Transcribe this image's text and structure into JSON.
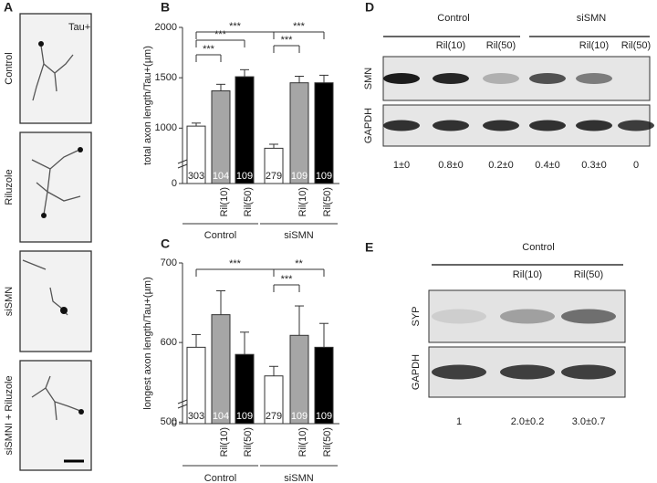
{
  "panel_labels": [
    "A",
    "B",
    "C",
    "D",
    "E"
  ],
  "panel_a": {
    "marker": "Tau+",
    "conditions": [
      "Control",
      "Riluzole",
      "siSMN",
      "siSMNI + Riluzole"
    ]
  },
  "chart_data": [
    {
      "type": "bar",
      "ylabel": "total axon length/Tau+(µm)",
      "groups": [
        "Control",
        "siSMN"
      ],
      "categories": [
        null,
        "Ril(10)",
        "Ril(50)",
        null,
        "Ril(10)",
        "Ril(50)"
      ],
      "values": [
        1020,
        1370,
        1510,
        800,
        1450,
        1450
      ],
      "errors": [
        30,
        65,
        70,
        40,
        65,
        75
      ],
      "n": [
        303,
        104,
        109,
        279,
        109,
        109
      ],
      "colors": [
        "#ffffff",
        "#a6a6a6",
        "#000000",
        "#ffffff",
        "#a6a6a6",
        "#000000"
      ],
      "ylim": [
        0,
        2000
      ],
      "yticks": [
        0,
        1000,
        1500,
        2000
      ],
      "significance": [
        {
          "text": "***",
          "pair": [
            0,
            3
          ]
        },
        {
          "text": "***",
          "pair": [
            3,
            5
          ]
        },
        {
          "text": "***",
          "pair": [
            0,
            2
          ]
        },
        {
          "text": "***",
          "pair": [
            3,
            4
          ]
        },
        {
          "text": "***",
          "pair": [
            0,
            1
          ]
        }
      ]
    },
    {
      "type": "bar",
      "ylabel": "longest axon length/Tau+(µm)",
      "groups": [
        "Control",
        "siSMN"
      ],
      "categories": [
        null,
        "Ril(10)",
        "Ril(50)",
        null,
        "Ril(10)",
        "Ril(50)"
      ],
      "values": [
        594,
        635,
        585,
        558,
        609,
        594
      ],
      "errors": [
        16,
        30,
        28,
        12,
        37,
        30
      ],
      "n": [
        303,
        104,
        109,
        279,
        109,
        109
      ],
      "colors": [
        "#ffffff",
        "#a6a6a6",
        "#000000",
        "#ffffff",
        "#a6a6a6",
        "#000000"
      ],
      "ylim": [
        0,
        700
      ],
      "yticks": [
        0,
        500,
        600,
        700
      ],
      "significance": [
        {
          "text": "***",
          "pair": [
            0,
            3
          ]
        },
        {
          "text": "**",
          "pair": [
            3,
            5
          ]
        },
        {
          "text": "***",
          "pair": [
            3,
            4
          ]
        }
      ]
    }
  ],
  "blot_d": {
    "groups": [
      "Control",
      "siSMN"
    ],
    "lanes": [
      null,
      "Ril(10)",
      "Ril(50)",
      null,
      "Ril(10)",
      "Ril(50)"
    ],
    "rows": [
      "SMN",
      "GAPDH"
    ],
    "quant": [
      "1±0",
      "0.8±0",
      "0.2±0",
      "0.4±0",
      "0.3±0",
      "0"
    ]
  },
  "blot_e": {
    "group": "Control",
    "lanes": [
      null,
      "Ril(10)",
      "Ril(50)"
    ],
    "rows": [
      "SYP",
      "GAPDH"
    ],
    "quant": [
      "1",
      "2.0±0.2",
      "3.0±0.7"
    ]
  }
}
